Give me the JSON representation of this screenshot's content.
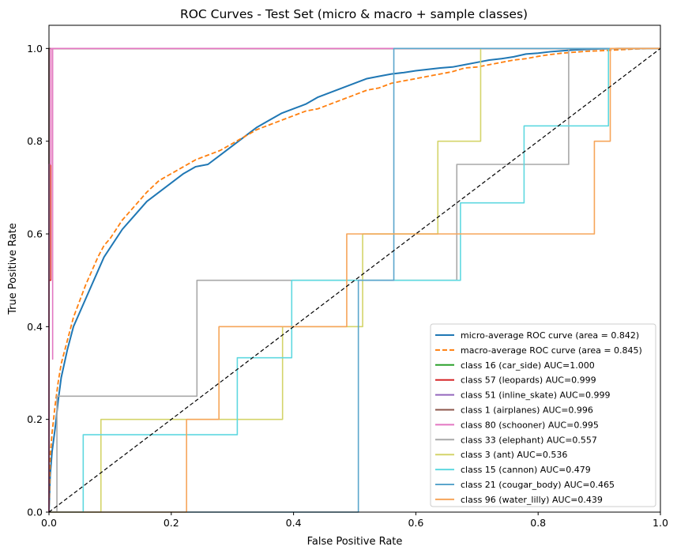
{
  "chart_data": {
    "type": "line",
    "title": "ROC Curves - Test Set (micro & macro + sample classes)",
    "xlabel": "False Positive Rate",
    "ylabel": "True Positive Rate",
    "xlim": [
      0.0,
      1.0
    ],
    "ylim": [
      0.0,
      1.05
    ],
    "x_ticks": [
      "0.0",
      "0.2",
      "0.4",
      "0.6",
      "0.8",
      "1.0"
    ],
    "y_ticks": [
      "0.0",
      "0.2",
      "0.4",
      "0.6",
      "0.8",
      "1.0"
    ],
    "grid": false,
    "legend_position": "lower-right",
    "series": [
      {
        "name": "micro-average ROC curve (area = 0.842)",
        "color": "#1f77b4",
        "style": "solid",
        "width": 2,
        "points": [
          [
            0,
            0
          ],
          [
            0.002,
            0.08
          ],
          [
            0.005,
            0.13
          ],
          [
            0.01,
            0.18
          ],
          [
            0.015,
            0.24
          ],
          [
            0.02,
            0.29
          ],
          [
            0.03,
            0.35
          ],
          [
            0.04,
            0.4
          ],
          [
            0.05,
            0.43
          ],
          [
            0.06,
            0.46
          ],
          [
            0.07,
            0.49
          ],
          [
            0.08,
            0.52
          ],
          [
            0.09,
            0.55
          ],
          [
            0.1,
            0.57
          ],
          [
            0.12,
            0.61
          ],
          [
            0.14,
            0.64
          ],
          [
            0.16,
            0.67
          ],
          [
            0.18,
            0.69
          ],
          [
            0.2,
            0.71
          ],
          [
            0.22,
            0.73
          ],
          [
            0.24,
            0.745
          ],
          [
            0.26,
            0.75
          ],
          [
            0.28,
            0.77
          ],
          [
            0.3,
            0.79
          ],
          [
            0.32,
            0.81
          ],
          [
            0.34,
            0.83
          ],
          [
            0.36,
            0.845
          ],
          [
            0.38,
            0.86
          ],
          [
            0.4,
            0.87
          ],
          [
            0.42,
            0.88
          ],
          [
            0.44,
            0.895
          ],
          [
            0.46,
            0.905
          ],
          [
            0.48,
            0.915
          ],
          [
            0.5,
            0.925
          ],
          [
            0.52,
            0.935
          ],
          [
            0.54,
            0.94
          ],
          [
            0.56,
            0.945
          ],
          [
            0.58,
            0.948
          ],
          [
            0.6,
            0.952
          ],
          [
            0.62,
            0.955
          ],
          [
            0.64,
            0.958
          ],
          [
            0.66,
            0.96
          ],
          [
            0.68,
            0.965
          ],
          [
            0.7,
            0.97
          ],
          [
            0.72,
            0.975
          ],
          [
            0.74,
            0.978
          ],
          [
            0.76,
            0.982
          ],
          [
            0.78,
            0.988
          ],
          [
            0.8,
            0.99
          ],
          [
            0.82,
            0.993
          ],
          [
            0.84,
            0.995
          ],
          [
            0.86,
            0.997
          ],
          [
            0.88,
            0.998
          ],
          [
            0.9,
            0.999
          ],
          [
            0.93,
            1.0
          ],
          [
            1.0,
            1.0
          ]
        ]
      },
      {
        "name": "macro-average ROC curve (area = 0.845)",
        "color": "#ff7f0e",
        "style": "dashed",
        "width": 1.8,
        "points": [
          [
            0,
            0
          ],
          [
            0.002,
            0.12
          ],
          [
            0.005,
            0.17
          ],
          [
            0.01,
            0.23
          ],
          [
            0.015,
            0.28
          ],
          [
            0.02,
            0.32
          ],
          [
            0.03,
            0.37
          ],
          [
            0.04,
            0.42
          ],
          [
            0.05,
            0.455
          ],
          [
            0.06,
            0.49
          ],
          [
            0.07,
            0.52
          ],
          [
            0.08,
            0.55
          ],
          [
            0.09,
            0.575
          ],
          [
            0.1,
            0.59
          ],
          [
            0.12,
            0.63
          ],
          [
            0.14,
            0.66
          ],
          [
            0.16,
            0.69
          ],
          [
            0.18,
            0.715
          ],
          [
            0.2,
            0.73
          ],
          [
            0.22,
            0.745
          ],
          [
            0.24,
            0.76
          ],
          [
            0.26,
            0.77
          ],
          [
            0.28,
            0.78
          ],
          [
            0.3,
            0.795
          ],
          [
            0.32,
            0.81
          ],
          [
            0.34,
            0.825
          ],
          [
            0.36,
            0.835
          ],
          [
            0.38,
            0.845
          ],
          [
            0.4,
            0.855
          ],
          [
            0.42,
            0.865
          ],
          [
            0.44,
            0.87
          ],
          [
            0.46,
            0.88
          ],
          [
            0.48,
            0.89
          ],
          [
            0.5,
            0.9
          ],
          [
            0.52,
            0.91
          ],
          [
            0.54,
            0.915
          ],
          [
            0.56,
            0.925
          ],
          [
            0.58,
            0.93
          ],
          [
            0.6,
            0.935
          ],
          [
            0.62,
            0.94
          ],
          [
            0.64,
            0.945
          ],
          [
            0.66,
            0.95
          ],
          [
            0.68,
            0.958
          ],
          [
            0.7,
            0.96
          ],
          [
            0.72,
            0.965
          ],
          [
            0.74,
            0.97
          ],
          [
            0.76,
            0.975
          ],
          [
            0.78,
            0.978
          ],
          [
            0.8,
            0.983
          ],
          [
            0.82,
            0.987
          ],
          [
            0.84,
            0.99
          ],
          [
            0.86,
            0.992
          ],
          [
            0.88,
            0.994
          ],
          [
            0.9,
            0.995
          ],
          [
            0.93,
            0.997
          ],
          [
            0.96,
            0.999
          ],
          [
            1.0,
            1.0
          ]
        ]
      },
      {
        "name": "class 16 (car_side) AUC=1.000",
        "color": "#2ca02c",
        "style": "solid",
        "width": 1.6,
        "points": [
          [
            0,
            0
          ],
          [
            0,
            1.0
          ],
          [
            1.0,
            1.0
          ]
        ]
      },
      {
        "name": "class 57 (leopards) AUC=0.999",
        "color": "#d62728",
        "style": "solid",
        "width": 1.6,
        "points": [
          [
            0,
            0
          ],
          [
            0,
            0.5
          ],
          [
            0.003,
            0.5
          ],
          [
            0.003,
            1.0
          ],
          [
            1.0,
            1.0
          ]
        ]
      },
      {
        "name": "class 51 (inline_skate) AUC=0.999",
        "color": "#9467bd",
        "style": "solid",
        "width": 1.6,
        "points": [
          [
            0,
            0
          ],
          [
            0,
            1.0
          ],
          [
            1.0,
            1.0
          ]
        ]
      },
      {
        "name": "class 1 (airplanes) AUC=0.996",
        "color": "#8c564b",
        "style": "solid",
        "width": 1.6,
        "points": [
          [
            0,
            0
          ],
          [
            0,
            1.0
          ],
          [
            1.0,
            1.0
          ]
        ]
      },
      {
        "name": "class 80 (schooner) AUC=0.995",
        "color": "#e377c2",
        "style": "solid",
        "width": 1.6,
        "points": [
          [
            0,
            0
          ],
          [
            0,
            0.75
          ],
          [
            0.003,
            0.75
          ],
          [
            0.003,
            1.0
          ],
          [
            0.006,
            1.0
          ],
          [
            0.006,
            0.33
          ],
          [
            0.006,
            1.0
          ],
          [
            1.0,
            1.0
          ]
        ]
      },
      {
        "name": "class 33 (elephant) AUC=0.557",
        "color": "#a8a8a8",
        "style": "solid",
        "width": 1.6,
        "points": [
          [
            0,
            0
          ],
          [
            0.013,
            0
          ],
          [
            0.013,
            0.25
          ],
          [
            0.242,
            0.25
          ],
          [
            0.242,
            0.5
          ],
          [
            0.667,
            0.5
          ],
          [
            0.667,
            0.75
          ],
          [
            0.85,
            0.75
          ],
          [
            0.85,
            1.0
          ],
          [
            1.0,
            1.0
          ]
        ]
      },
      {
        "name": "class 3 (ant) AUC=0.536",
        "color": "#d4d46a",
        "style": "solid",
        "width": 1.6,
        "points": [
          [
            0,
            0
          ],
          [
            0.085,
            0
          ],
          [
            0.085,
            0.2
          ],
          [
            0.382,
            0.2
          ],
          [
            0.382,
            0.4
          ],
          [
            0.513,
            0.4
          ],
          [
            0.513,
            0.6
          ],
          [
            0.636,
            0.6
          ],
          [
            0.636,
            0.8
          ],
          [
            0.706,
            0.8
          ],
          [
            0.706,
            1.0
          ],
          [
            1.0,
            1.0
          ]
        ]
      },
      {
        "name": "class 15 (cannon) AUC=0.479",
        "color": "#5fd8e0",
        "style": "solid",
        "width": 1.6,
        "points": [
          [
            0,
            0
          ],
          [
            0.056,
            0
          ],
          [
            0.056,
            0.167
          ],
          [
            0.308,
            0.167
          ],
          [
            0.308,
            0.333
          ],
          [
            0.397,
            0.333
          ],
          [
            0.397,
            0.5
          ],
          [
            0.673,
            0.5
          ],
          [
            0.673,
            0.667
          ],
          [
            0.777,
            0.667
          ],
          [
            0.777,
            0.833
          ],
          [
            0.915,
            0.833
          ],
          [
            0.915,
            1.0
          ],
          [
            1.0,
            1.0
          ]
        ]
      },
      {
        "name": "class 21 (cougar_body) AUC=0.465",
        "color": "#5ba6cc",
        "style": "solid",
        "width": 1.6,
        "points": [
          [
            0,
            0
          ],
          [
            0.506,
            0
          ],
          [
            0.506,
            0.5
          ],
          [
            0.564,
            0.5
          ],
          [
            0.564,
            1.0
          ],
          [
            1.0,
            1.0
          ]
        ]
      },
      {
        "name": "class 96 (water_lilly) AUC=0.439",
        "color": "#f6a55a",
        "style": "solid",
        "width": 1.6,
        "points": [
          [
            0,
            0
          ],
          [
            0.225,
            0
          ],
          [
            0.225,
            0.2
          ],
          [
            0.278,
            0.2
          ],
          [
            0.278,
            0.4
          ],
          [
            0.487,
            0.4
          ],
          [
            0.487,
            0.6
          ],
          [
            0.892,
            0.6
          ],
          [
            0.892,
            0.8
          ],
          [
            0.918,
            0.8
          ],
          [
            0.918,
            1.0
          ],
          [
            1.0,
            1.0
          ]
        ]
      }
    ],
    "reference_line": {
      "color": "#000000",
      "style": "dashed",
      "points": [
        [
          0,
          0
        ],
        [
          1,
          1
        ]
      ]
    },
    "legend": [
      {
        "label": "micro-average ROC curve (area = 0.842)",
        "color": "#1f77b4"
      },
      {
        "label": "macro-average ROC curve (area = 0.845)",
        "color": "#ff7f0e",
        "dashed": true
      },
      {
        "label": "class 16 (car_side) AUC=1.000",
        "color": "#2ca02c"
      },
      {
        "label": "class 57 (leopards) AUC=0.999",
        "color": "#d62728"
      },
      {
        "label": "class 51 (inline_skate) AUC=0.999",
        "color": "#9467bd"
      },
      {
        "label": "class 1 (airplanes) AUC=0.996",
        "color": "#8c564b"
      },
      {
        "label": "class 80 (schooner) AUC=0.995",
        "color": "#e377c2"
      },
      {
        "label": "class 33 (elephant) AUC=0.557",
        "color": "#a8a8a8"
      },
      {
        "label": "class 3 (ant) AUC=0.536",
        "color": "#d4d46a"
      },
      {
        "label": "class 15 (cannon) AUC=0.479",
        "color": "#5fd8e0"
      },
      {
        "label": "class 21 (cougar_body) AUC=0.465",
        "color": "#5ba6cc"
      },
      {
        "label": "class 96 (water_lilly) AUC=0.439",
        "color": "#f6a55a"
      }
    ]
  }
}
